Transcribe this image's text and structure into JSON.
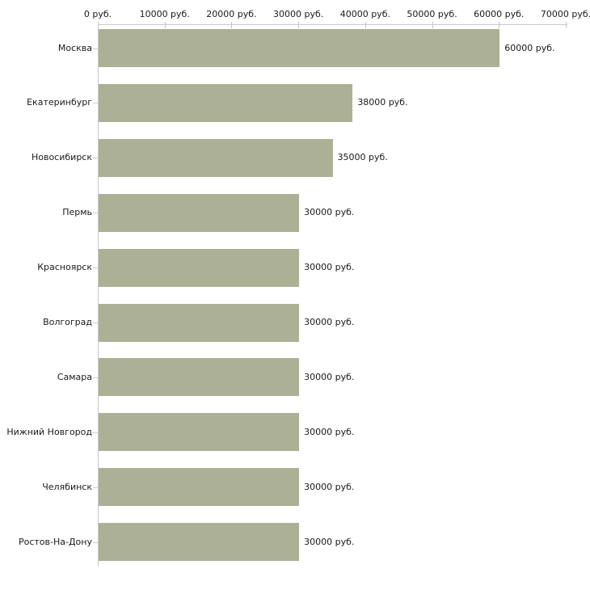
{
  "chart_data": {
    "type": "bar",
    "orientation": "horizontal",
    "title": "",
    "xlabel": "",
    "ylabel": "",
    "unit": "руб.",
    "categories": [
      "Москва",
      "Екатеринбург",
      "Новосибирск",
      "Пермь",
      "Красноярск",
      "Волгоград",
      "Самара",
      "Нижний Новгород",
      "Челябинск",
      "Ростов-На-Дону"
    ],
    "values": [
      60000,
      38000,
      35000,
      30000,
      30000,
      30000,
      30000,
      30000,
      30000,
      30000
    ],
    "value_labels": [
      "60000 руб.",
      "38000 руб.",
      "35000 руб.",
      "30000 руб.",
      "30000 руб.",
      "30000 руб.",
      "30000 руб.",
      "30000 руб.",
      "30000 руб.",
      "30000 руб."
    ],
    "x_tick_values": [
      0,
      10000,
      20000,
      30000,
      40000,
      50000,
      60000,
      70000
    ],
    "x_tick_labels": [
      "0 руб.",
      "10000 руб.",
      "20000 руб.",
      "30000 руб.",
      "40000 руб.",
      "50000 руб.",
      "60000 руб.",
      "70000 руб."
    ],
    "xlim": [
      0,
      70000
    ],
    "grid": false,
    "legend": false,
    "axis_position": "top",
    "colors": {
      "bar": "#acb196",
      "axis_line": "#c9c9c9",
      "axis_tick": "#c3c6b3",
      "category_tick": "#ccd0b6",
      "text": "#1a1a1a",
      "background": "#ffffff"
    }
  }
}
